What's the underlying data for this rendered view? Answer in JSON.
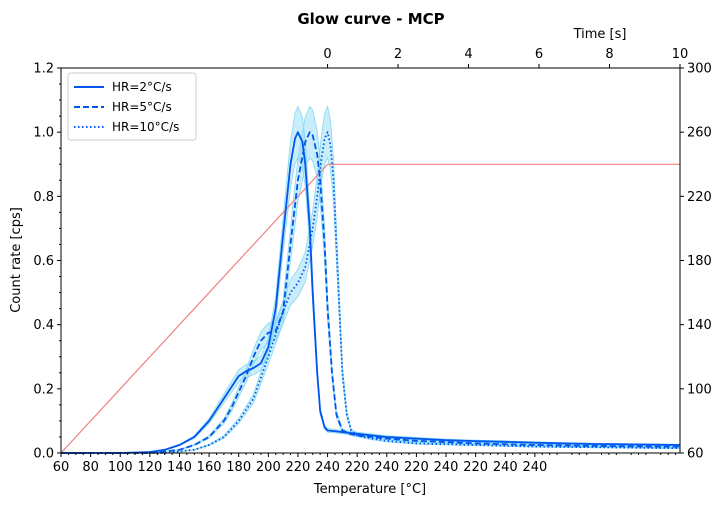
{
  "chart_data": {
    "type": "line",
    "title": "Glow curve - MCP",
    "xlabel": "Temperature [°C]",
    "ylabel": "Count rate [cps]",
    "top_xlabel": "Time [s]",
    "x_ticks": [
      "60",
      "80",
      "100",
      "120",
      "140",
      "160",
      "180",
      "200",
      "220",
      "240",
      "220",
      "240",
      "220",
      "240",
      "220",
      "240",
      "240"
    ],
    "y_ticks": [
      "0.0",
      "0.2",
      "0.4",
      "0.6",
      "0.8",
      "1.0",
      "1.2"
    ],
    "y2_ticks": [
      "60",
      "100",
      "140",
      "180",
      "220",
      "260",
      "300"
    ],
    "top_ticks": [
      "0",
      "2",
      "4",
      "6",
      "8",
      "10"
    ],
    "xlim": [
      60,
      240
    ],
    "ylim": [
      0,
      1.2
    ],
    "y2lim": [
      60,
      300
    ],
    "top_xlim_seconds_at_temperature": {
      "0": 240,
      "10": 240
    },
    "legend_position": "top-left",
    "series": [
      {
        "name": "HR=2°C/s",
        "style": "solid",
        "color": "#0055ee",
        "x": [
          60,
          100,
          120,
          130,
          140,
          150,
          160,
          165,
          170,
          175,
          180,
          185,
          190,
          195,
          200,
          205,
          210,
          215,
          218,
          220,
          223,
          225,
          228,
          230,
          233,
          235,
          238,
          240,
          245,
          250,
          260,
          280,
          300,
          320,
          340,
          360,
          380,
          400,
          420,
          440,
          460,
          478
        ],
        "y": [
          0.0,
          0.0,
          0.003,
          0.01,
          0.025,
          0.05,
          0.1,
          0.135,
          0.17,
          0.205,
          0.24,
          0.255,
          0.265,
          0.28,
          0.33,
          0.45,
          0.68,
          0.9,
          0.98,
          1.0,
          0.97,
          0.9,
          0.7,
          0.5,
          0.25,
          0.13,
          0.08,
          0.07,
          0.068,
          0.065,
          0.06,
          0.05,
          0.045,
          0.04,
          0.037,
          0.035,
          0.032,
          0.03,
          0.028,
          0.027,
          0.026,
          0.025
        ],
        "band": 0.08
      },
      {
        "name": "HR=5°C/s",
        "style": "dashed",
        "color": "#0055ee",
        "x": [
          60,
          120,
          140,
          150,
          160,
          170,
          175,
          180,
          185,
          190,
          195,
          200,
          205,
          210,
          215,
          220,
          225,
          228,
          230,
          233,
          235,
          238,
          240,
          243,
          246,
          250,
          255,
          260,
          270,
          280,
          300,
          340,
          380,
          420,
          460,
          478
        ],
        "y": [
          0.0,
          0.0,
          0.01,
          0.025,
          0.05,
          0.1,
          0.14,
          0.19,
          0.24,
          0.3,
          0.35,
          0.375,
          0.38,
          0.44,
          0.65,
          0.85,
          0.97,
          1.0,
          0.99,
          0.93,
          0.85,
          0.65,
          0.45,
          0.25,
          0.12,
          0.07,
          0.06,
          0.055,
          0.05,
          0.045,
          0.038,
          0.03,
          0.025,
          0.022,
          0.02,
          0.02
        ],
        "band": 0.08
      },
      {
        "name": "HR=10°C/s",
        "style": "dotted",
        "color": "#0055ee",
        "x": [
          60,
          130,
          150,
          160,
          170,
          180,
          190,
          200,
          205,
          210,
          215,
          220,
          225,
          230,
          233,
          236,
          238,
          240,
          242,
          244,
          246,
          248,
          250,
          253,
          256,
          260,
          270,
          280,
          300,
          340,
          380,
          420,
          460,
          478
        ],
        "y": [
          0.0,
          0.0,
          0.01,
          0.025,
          0.05,
          0.1,
          0.17,
          0.3,
          0.37,
          0.44,
          0.5,
          0.53,
          0.58,
          0.7,
          0.8,
          0.92,
          0.98,
          1.0,
          0.96,
          0.85,
          0.65,
          0.45,
          0.25,
          0.12,
          0.07,
          0.055,
          0.045,
          0.038,
          0.03,
          0.025,
          0.02,
          0.018,
          0.016,
          0.015
        ],
        "band": 0.08
      }
    ],
    "temperature_profile": {
      "color": "#f08080",
      "x": [
        60,
        240,
        478
      ],
      "y2": [
        60,
        240,
        240
      ]
    },
    "band_color": "#87d8f5"
  }
}
